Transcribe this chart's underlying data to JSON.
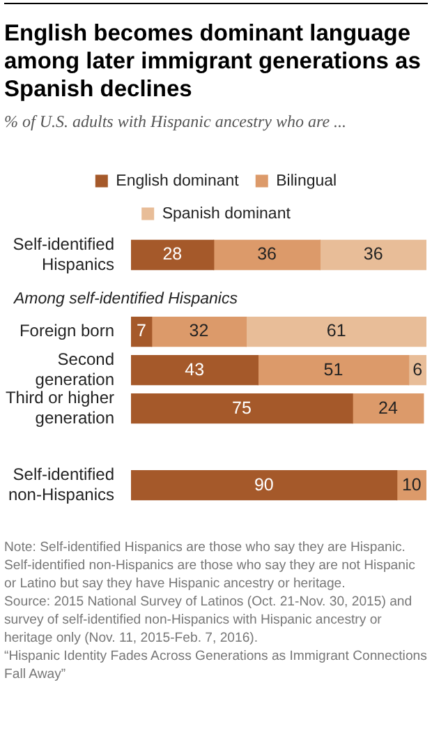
{
  "chart_data": {
    "type": "bar",
    "orientation": "horizontal",
    "stacked": true,
    "title": "English becomes dominant language among later immigrant generations as Spanish declines",
    "subtitle": "% of U.S. adults with Hispanic ancestry who are ...",
    "categories": [
      "Self-identified Hispanics",
      "Foreign born",
      "Second generation",
      "Third or higher generation",
      "Self-identified non-Hispanics"
    ],
    "series": [
      {
        "name": "English dominant",
        "color": "#a5592a",
        "values": [
          28,
          7,
          43,
          75,
          90
        ]
      },
      {
        "name": "Bilingual",
        "color": "#dc9a6a",
        "values": [
          36,
          32,
          51,
          24,
          10
        ]
      },
      {
        "name": "Spanish dominant",
        "color": "#e8bd98",
        "values": [
          36,
          61,
          6,
          null,
          null
        ]
      }
    ],
    "xlim": [
      0,
      100
    ],
    "tick_labels": "y",
    "data_labels": true,
    "legend": "top",
    "annotations": [
      "Among self-identified Hispanics",
      "Note: Self-identified Hispanics are those who say they are Hispanic. Self-identified non-Hispanics are those who say they are not Hispanic or Latino but say they have Hispanic ancestry or heritage.",
      "Source: 2015 National Survey of Latinos (Oct. 21-Nov. 30, 2015) and survey of self-identified non-Hispanics with Hispanic ancestry or heritage only (Nov. 11, 2015-Feb. 7, 2016).",
      "“Hispanic Identity Fades Across Generations as Immigrant Connections Fall Away”"
    ]
  }
}
